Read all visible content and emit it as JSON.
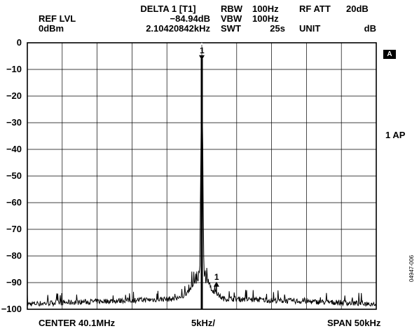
{
  "header": {
    "ref_level_label": "REF LVL",
    "ref_level_value": "0dBm",
    "marker_title": "DELTA 1 [T1]",
    "marker_level": "−84.94dB",
    "marker_freq": "2.10420842kHz",
    "rbw_label": "RBW",
    "rbw_value": "100Hz",
    "vbw_label": "VBW",
    "vbw_value": "100Hz",
    "swt_label": "SWT",
    "swt_value": "25s",
    "rf_att_label": "RF ATT",
    "rf_att_value": "20dB",
    "unit_label": "UNIT",
    "unit_value": "dB"
  },
  "side": {
    "trace_badge": "A",
    "trace_mode": "1 AP",
    "figure_id": "04947-006"
  },
  "footer": {
    "center": "CENTER 40.1MHz",
    "div": "5kHz/",
    "span": "SPAN 50kHz"
  },
  "chart_data": {
    "type": "line",
    "x_unit": "kHz offset from center",
    "xlim": [
      -25,
      25
    ],
    "ylim": [
      -100,
      0
    ],
    "y_ticks": [
      "0",
      "−10",
      "−20",
      "−30",
      "−40",
      "−50",
      "−60",
      "−70",
      "−80",
      "−90",
      "−100"
    ],
    "grid": true,
    "series": [
      {
        "noise_floor_db": -98,
        "points": [
          {
            "x": -25.0,
            "y": -98
          },
          {
            "x": -3.0,
            "y": -96
          },
          {
            "x": -1.2,
            "y": -91
          },
          {
            "x": -0.3,
            "y": -88
          },
          {
            "x": 0.0,
            "y": -6
          },
          {
            "x": 0.3,
            "y": -88
          },
          {
            "x": 1.2,
            "y": -92
          },
          {
            "x": 3.0,
            "y": -96
          },
          {
            "x": 25.0,
            "y": -98
          }
        ]
      }
    ],
    "markers": [
      {
        "label": "1",
        "x": 0.0,
        "y": -6,
        "marker_style": "down-triangle"
      },
      {
        "label": "1",
        "x": 2.1,
        "y": -91,
        "marker_style": "up-arrow"
      }
    ]
  }
}
